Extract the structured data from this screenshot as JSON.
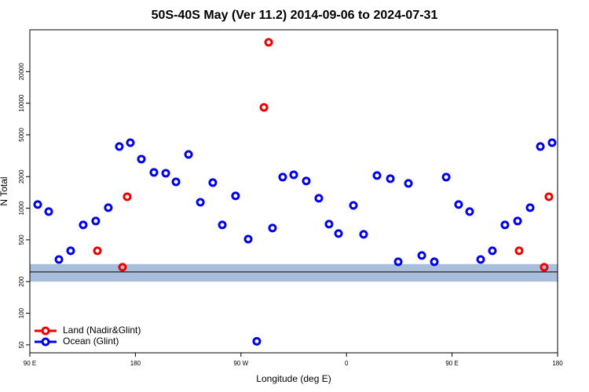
{
  "chart_data": {
    "type": "scatter",
    "title": "50S-40S May (Ver 11.2)   2014-09-06 to 2024-07-31",
    "x_label": "Longitude (deg E)",
    "y_label": "N Total",
    "xlim": [
      90,
      540
    ],
    "xticks": [
      {
        "value": 90,
        "label": "90 E"
      },
      180,
      {
        "value": 270,
        "label": "90 W"
      },
      {
        "value": 360,
        "label": "0"
      },
      {
        "value": 450,
        "label": "90 E"
      },
      {
        "value": 540,
        "label": "180"
      }
    ],
    "ylim": [
      42,
      50000
    ],
    "log_y": true,
    "yticks": [
      50,
      100,
      200,
      500,
      1000,
      2000,
      5000,
      10000,
      20000
    ],
    "band": [
      200,
      294
    ],
    "band_color": "#a9bedb",
    "ref_line": 247,
    "legend": "bottom-left",
    "series": [
      {
        "name": "Land (Nadir&Glint)",
        "color": "#ee0000",
        "x": [
          147.6,
          169.0,
          173.0,
          289.6,
          293.6,
          507.2,
          528.6,
          532.6
        ],
        "values": [
          393,
          274,
          1286,
          9120,
          38000,
          393,
          274,
          1286
        ]
      },
      {
        "name": "Ocean (Glint)",
        "color": "#0000ee",
        "x": [
          96.7,
          106.1,
          114.8,
          124.8,
          135.5,
          146.2,
          156.9,
          166.3,
          175.7,
          185.1,
          195.8,
          205.9,
          214.6,
          225.3,
          235.4,
          246.0,
          254.1,
          265.4,
          276.2,
          283.5,
          296.9,
          305.6,
          315.0,
          325.7,
          336.4,
          345.1,
          353.2,
          365.9,
          374.6,
          386.0,
          397.4,
          404.1,
          412.8,
          424.2,
          434.9,
          445.0,
          455.6,
          465.0,
          474.4,
          484.4,
          495.1,
          505.9,
          516.6,
          525.3,
          535.3
        ],
        "values": [
          1084,
          929,
          325,
          393,
          693,
          755,
          1012,
          3865,
          4210,
          2935,
          2192,
          2154,
          1783,
          3253,
          1140,
          1753,
          693,
          1309,
          508,
          54,
          647,
          1977,
          2081,
          1815,
          1244,
          705,
          574,
          1064,
          564,
          2047,
          1910,
          309,
          1723,
          355,
          309,
          1977,
          1084,
          929,
          325,
          393,
          693,
          755,
          1012,
          3865,
          4210
        ]
      }
    ]
  }
}
